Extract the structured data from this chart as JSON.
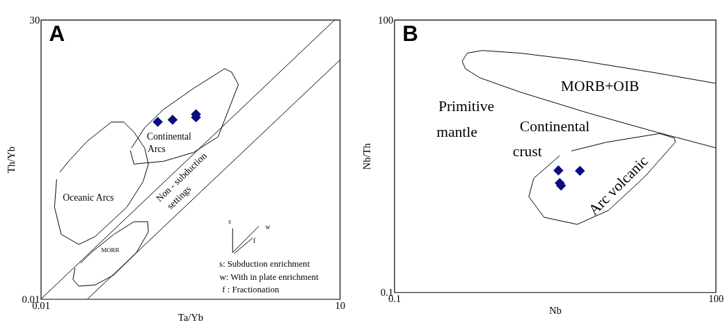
{
  "chart_data": [
    {
      "type": "scatter",
      "title": "A",
      "xlabel": "Ta/Yb",
      "ylabel": "Th/Yb",
      "log": "xy",
      "xlim": [
        0.01,
        10
      ],
      "ylim": [
        0.01,
        30
      ],
      "xticks": [
        0.01,
        10
      ],
      "yticks": [
        0.01,
        30
      ],
      "grid": false,
      "series": [
        {
          "color": "#0d0d80",
          "marker": "diamond",
          "x": [
            0.149,
            0.21,
            0.36,
            0.36
          ],
          "values": [
            1.61,
            1.71,
            1.83,
            2.0
          ]
        },
        {
          "type": "line",
          "color": "#000000",
          "x": [
            0.01,
            8.9
          ],
          "values": [
            0.01,
            30
          ]
        },
        {
          "type": "line",
          "color": "#000000",
          "x": [
            0.0293,
            10
          ],
          "values": [
            0.01,
            9.45
          ]
        },
        {
          "type": "line",
          "color": "#000000",
          "x": [
            0.079,
            0.086,
            0.17,
            0.34,
            0.6,
            0.96,
            0.82,
            0.7,
            0.34,
            0.17,
            0.11,
            0.084,
            0.081
          ],
          "values": [
            0.71,
            0.48,
            0.52,
            0.67,
            1.05,
            4.7,
            6.7,
            7.4,
            4.2,
            2.3,
            1.36,
            0.81,
            0.76
          ]
        },
        {
          "type": "line",
          "color": "#000000",
          "x": [
            0.0144,
            0.0137,
            0.016,
            0.024,
            0.035,
            0.073,
            0.106,
            0.12,
            0.11,
            0.086,
            0.068,
            0.051,
            0.029,
            0.019,
            0.0155
          ],
          "values": [
            0.31,
            0.14,
            0.064,
            0.048,
            0.06,
            0.14,
            0.29,
            0.48,
            0.76,
            1.2,
            1.6,
            1.6,
            0.92,
            0.52,
            0.38
          ]
        },
        {
          "type": "line",
          "color": "#000000",
          "x": [
            0.022,
            0.021,
            0.024,
            0.035,
            0.054,
            0.091,
            0.12,
            0.118,
            0.086,
            0.054,
            0.032,
            0.025
          ],
          "values": [
            0.0243,
            0.0176,
            0.0145,
            0.015,
            0.02,
            0.038,
            0.069,
            0.092,
            0.092,
            0.064,
            0.038,
            0.028
          ]
        },
        {
          "type": "line",
          "color": "#000000",
          "x": [
            0.84,
            0.84
          ],
          "values": [
            0.076,
            0.038
          ]
        },
        {
          "type": "line",
          "color": "#000000",
          "x": [
            0.84,
            1.54
          ],
          "values": [
            0.038,
            0.081
          ]
        },
        {
          "type": "line",
          "color": "#000000",
          "x": [
            0.87,
            1.34
          ],
          "values": [
            0.037,
            0.058
          ]
        }
      ],
      "annotations": [
        "Continental",
        "Arcs",
        "Oceanic Arcs",
        "MORB",
        "Non - subduction",
        "settings",
        "s",
        "w",
        "f",
        "s: Subduction enrichment",
        "w: With in plate enrichment",
        "f : Fractionation"
      ]
    },
    {
      "type": "scatter",
      "title": "B",
      "xlabel": "Nb",
      "ylabel": "Nb/Th",
      "log": "xy",
      "xlim": [
        0.1,
        100
      ],
      "ylim": [
        0.1,
        100
      ],
      "xticks": [
        0.1,
        100
      ],
      "yticks": [
        0.1,
        100
      ],
      "grid": false,
      "series": [
        {
          "color": "#0d0d80",
          "marker": "diamond",
          "x": [
            3.4,
            5.4,
            3.5,
            3.6
          ],
          "values": [
            2.2,
            2.18,
            1.6,
            1.5
          ]
        },
        {
          "type": "line",
          "color": "#000000",
          "x": [
            100,
            28,
            5.1,
            1.5,
            0.66,
            0.48,
            0.43,
            0.46,
            0.63,
            1.5,
            6.5,
            28,
            100
          ],
          "values": [
            20,
            26,
            36,
            43,
            46,
            43,
            35,
            29,
            23,
            16,
            9.4,
            5.8,
            3.9
          ]
        },
        {
          "type": "line",
          "color": "#000000",
          "x": [
            3.5,
            2.0,
            1.8,
            2.5,
            5.1,
            10,
            22,
            42,
            41,
            30,
            9.6,
            4.5
          ],
          "values": [
            3.2,
            1.8,
            1.13,
            0.67,
            0.56,
            0.8,
            1.9,
            4.5,
            5.0,
            5.6,
            4.5,
            3.6
          ]
        }
      ],
      "annotations": [
        "MORB+OIB",
        "Primitive",
        "mantle",
        "Continental",
        "crust",
        "Arc volcanic"
      ]
    }
  ]
}
